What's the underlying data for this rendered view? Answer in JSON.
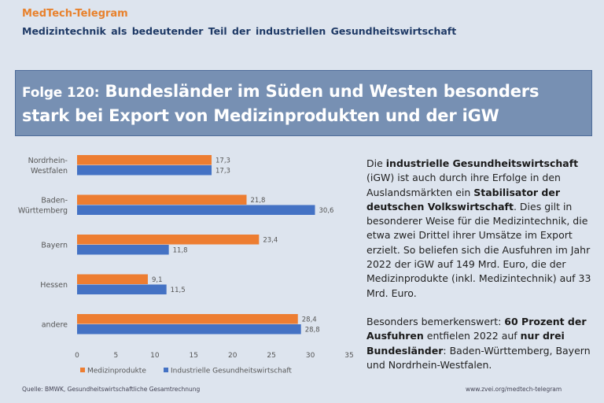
{
  "header": {
    "brand": "MedTech-Telegram",
    "subtitle": "Medizintechnik als bedeutender Teil der industriellen Gesundheitswirtschaft",
    "folge": "Folge 120:",
    "headline": "Bundesländer im Süden und Westen besonders stark bei Export von Medizinprodukten und der iGW"
  },
  "colors": {
    "medizinprodukte": "#ed7d31",
    "igw": "#4472c4",
    "headline_bg": "#7790b3",
    "brand": "#e8812c"
  },
  "chart_data": {
    "type": "bar",
    "orientation": "horizontal",
    "categories": [
      [
        "Nordrhein-",
        "Westfalen"
      ],
      [
        "Baden-",
        "Württemberg"
      ],
      [
        "Bayern"
      ],
      [
        "Hessen"
      ],
      [
        "andere"
      ]
    ],
    "series": [
      {
        "name": "Medizinprodukte",
        "values": [
          17.3,
          21.8,
          23.4,
          9.1,
          28.4
        ],
        "labels": [
          "17,3",
          "21,8",
          "23,4",
          "9,1",
          "28,4"
        ]
      },
      {
        "name": "Industrielle Gesundheitswirtschaft",
        "values": [
          17.3,
          30.6,
          11.8,
          11.5,
          28.8
        ],
        "labels": [
          "17,3",
          "30,6",
          "11,8",
          "11,5",
          "28,8"
        ]
      }
    ],
    "xlim": [
      0,
      35
    ],
    "xticks": [
      0,
      5,
      10,
      15,
      20,
      25,
      30,
      35
    ],
    "grid": false,
    "legend_position": "bottom"
  },
  "text": {
    "p1": [
      {
        "t": "Die ",
        "b": false
      },
      {
        "t": "industrielle Gesundheitswirtschaft",
        "b": true
      },
      {
        "t": " (iGW) ist auch durch ihre Erfolge in den Auslandsmärkten ein ",
        "b": false
      },
      {
        "t": "Stabilisator der deutschen Volkswirtschaft",
        "b": true
      },
      {
        "t": ". Dies gilt in besonderer Weise für die Medizintechnik, die etwa zwei Drittel ihrer Umsätze im Export erzielt. So beliefen sich die Ausfuhren im Jahr 2022 der iGW auf 149 Mrd. Euro, die der Medizinprodukte (inkl. Medizintechnik) auf 33 Mrd. Euro.",
        "b": false
      }
    ],
    "p2": [
      {
        "t": "Besonders bemerkenswert: ",
        "b": false
      },
      {
        "t": "60 Prozent der Ausfuhren",
        "b": true
      },
      {
        "t": " entfielen 2022 auf ",
        "b": false
      },
      {
        "t": "nur drei Bundesländer",
        "b": true
      },
      {
        "t": ": Baden-Württemberg, Bayern und Nordrhein-Westfalen.",
        "b": false
      }
    ]
  },
  "footer": {
    "source": "Quelle: BMWK, Gesundheitswirtschaftliche Gesamtrechnung",
    "url": "www.zvei.org/medtech-telegram"
  }
}
